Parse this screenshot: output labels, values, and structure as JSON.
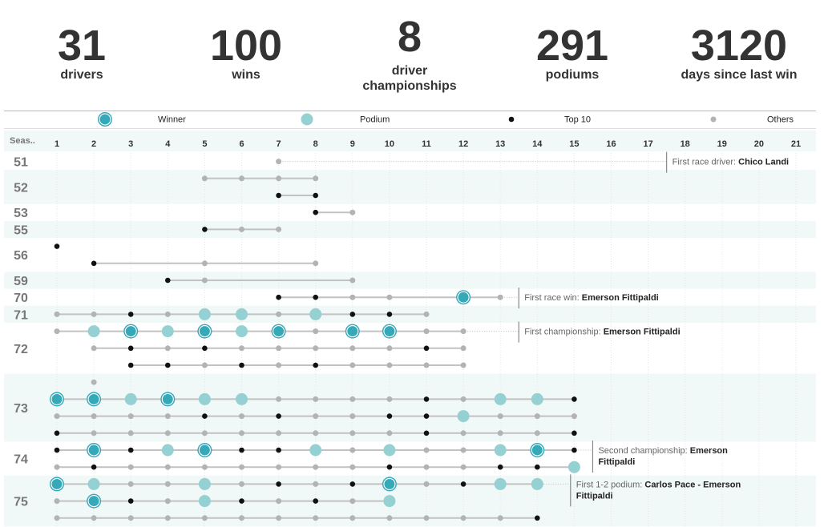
{
  "stats": [
    {
      "value": "31",
      "label": "drivers"
    },
    {
      "value": "100",
      "label": "wins"
    },
    {
      "value": "8",
      "label": "driver championships"
    },
    {
      "value": "291",
      "label": "podiums"
    },
    {
      "value": "3120",
      "label": "days since last win"
    }
  ],
  "colors": {
    "winner": "#36a9b9",
    "podium": "#95d0d3",
    "top10": "#111111",
    "others": "#b3b3b3",
    "band": "#f1f8f8",
    "line": "#c2c2c2"
  },
  "chart_data": {
    "type": "scatter",
    "legend": [
      "Winner",
      "Podium",
      "Top 10",
      "Others"
    ],
    "header_label": "Seas..",
    "x": [
      1,
      2,
      3,
      4,
      5,
      6,
      7,
      8,
      9,
      10,
      11,
      12,
      13,
      14,
      15,
      16,
      17,
      18,
      19,
      20,
      21
    ],
    "seasons": [
      {
        "label": "51",
        "rows": [
          [
            [
              7,
              "o"
            ]
          ]
        ]
      },
      {
        "label": "52",
        "rows": [
          [
            [
              5,
              "o"
            ],
            [
              6,
              "o"
            ],
            [
              7,
              "o"
            ],
            [
              8,
              "o"
            ]
          ],
          [
            [
              7,
              "t"
            ],
            [
              8,
              "t"
            ]
          ]
        ]
      },
      {
        "label": "53",
        "rows": [
          [
            [
              8,
              "t"
            ],
            [
              9,
              "o"
            ]
          ]
        ]
      },
      {
        "label": "55",
        "rows": [
          [
            [
              5,
              "t"
            ],
            [
              6,
              "o"
            ],
            [
              7,
              "o"
            ]
          ]
        ]
      },
      {
        "label": "56",
        "rows": [
          [
            [
              1,
              "t"
            ]
          ],
          [
            [
              2,
              "t"
            ],
            [
              5,
              "o"
            ],
            [
              8,
              "o"
            ]
          ]
        ]
      },
      {
        "label": "59",
        "rows": [
          [
            [
              4,
              "t"
            ],
            [
              5,
              "o"
            ],
            [
              9,
              "o"
            ]
          ]
        ]
      },
      {
        "label": "70",
        "rows": [
          [
            [
              7,
              "t"
            ],
            [
              8,
              "t"
            ],
            [
              9,
              "o"
            ],
            [
              10,
              "o"
            ],
            [
              12,
              "w"
            ],
            [
              13,
              "o"
            ]
          ]
        ]
      },
      {
        "label": "71",
        "rows": [
          [
            [
              1,
              "o"
            ],
            [
              2,
              "o"
            ],
            [
              3,
              "t"
            ],
            [
              4,
              "o"
            ],
            [
              5,
              "p"
            ],
            [
              6,
              "p"
            ],
            [
              7,
              "o"
            ],
            [
              8,
              "p"
            ],
            [
              9,
              "t"
            ],
            [
              10,
              "t"
            ],
            [
              11,
              "o"
            ]
          ]
        ]
      },
      {
        "label": "72",
        "rows": [
          [
            [
              1,
              "o"
            ],
            [
              2,
              "p"
            ],
            [
              3,
              "w"
            ],
            [
              4,
              "p"
            ],
            [
              5,
              "w"
            ],
            [
              6,
              "p"
            ],
            [
              7,
              "w"
            ],
            [
              8,
              "o"
            ],
            [
              9,
              "w"
            ],
            [
              10,
              "w"
            ],
            [
              11,
              "o"
            ],
            [
              12,
              "o"
            ]
          ],
          [
            [
              2,
              "o"
            ],
            [
              3,
              "t"
            ],
            [
              4,
              "o"
            ],
            [
              5,
              "t"
            ],
            [
              6,
              "o"
            ],
            [
              7,
              "o"
            ],
            [
              8,
              "o"
            ],
            [
              9,
              "o"
            ],
            [
              10,
              "o"
            ],
            [
              11,
              "t"
            ],
            [
              12,
              "o"
            ]
          ],
          [
            [
              3,
              "t"
            ],
            [
              4,
              "t"
            ],
            [
              5,
              "o"
            ],
            [
              6,
              "t"
            ],
            [
              7,
              "o"
            ],
            [
              8,
              "t"
            ],
            [
              9,
              "o"
            ],
            [
              10,
              "o"
            ],
            [
              11,
              "o"
            ],
            [
              12,
              "o"
            ]
          ]
        ]
      },
      {
        "label": "73",
        "rows": [
          [
            [
              2,
              "o"
            ]
          ],
          [
            [
              1,
              "w"
            ],
            [
              2,
              "w"
            ],
            [
              3,
              "p"
            ],
            [
              4,
              "w"
            ],
            [
              5,
              "p"
            ],
            [
              6,
              "p"
            ],
            [
              7,
              "o"
            ],
            [
              8,
              "o"
            ],
            [
              9,
              "o"
            ],
            [
              10,
              "o"
            ],
            [
              11,
              "t"
            ],
            [
              12,
              "o"
            ],
            [
              13,
              "p"
            ],
            [
              14,
              "p"
            ],
            [
              15,
              "t"
            ]
          ],
          [
            [
              1,
              "o"
            ],
            [
              2,
              "o"
            ],
            [
              3,
              "o"
            ],
            [
              4,
              "o"
            ],
            [
              5,
              "t"
            ],
            [
              6,
              "o"
            ],
            [
              7,
              "t"
            ],
            [
              8,
              "o"
            ],
            [
              9,
              "o"
            ],
            [
              10,
              "t"
            ],
            [
              11,
              "t"
            ],
            [
              12,
              "p"
            ],
            [
              13,
              "o"
            ],
            [
              14,
              "o"
            ],
            [
              15,
              "o"
            ]
          ],
          [
            [
              1,
              "t"
            ],
            [
              2,
              "o"
            ],
            [
              3,
              "o"
            ],
            [
              4,
              "o"
            ],
            [
              5,
              "o"
            ],
            [
              6,
              "o"
            ],
            [
              7,
              "o"
            ],
            [
              8,
              "o"
            ],
            [
              9,
              "o"
            ],
            [
              10,
              "o"
            ],
            [
              11,
              "t"
            ],
            [
              12,
              "o"
            ],
            [
              13,
              "o"
            ],
            [
              14,
              "o"
            ],
            [
              15,
              "t"
            ]
          ]
        ]
      },
      {
        "label": "74",
        "rows": [
          [
            [
              1,
              "t"
            ],
            [
              2,
              "w"
            ],
            [
              3,
              "t"
            ],
            [
              4,
              "p"
            ],
            [
              5,
              "w"
            ],
            [
              6,
              "t"
            ],
            [
              7,
              "t"
            ],
            [
              8,
              "p"
            ],
            [
              9,
              "o"
            ],
            [
              10,
              "p"
            ],
            [
              11,
              "o"
            ],
            [
              12,
              "o"
            ],
            [
              13,
              "p"
            ],
            [
              14,
              "w"
            ],
            [
              15,
              "t"
            ]
          ],
          [
            [
              1,
              "o"
            ],
            [
              2,
              "t"
            ],
            [
              3,
              "o"
            ],
            [
              4,
              "o"
            ],
            [
              5,
              "o"
            ],
            [
              6,
              "o"
            ],
            [
              7,
              "o"
            ],
            [
              8,
              "o"
            ],
            [
              9,
              "o"
            ],
            [
              10,
              "t"
            ],
            [
              11,
              "o"
            ],
            [
              12,
              "o"
            ],
            [
              13,
              "t"
            ],
            [
              14,
              "t"
            ],
            [
              15,
              "p"
            ]
          ]
        ]
      },
      {
        "label": "75",
        "rows": [
          [
            [
              1,
              "w"
            ],
            [
              2,
              "p"
            ],
            [
              3,
              "o"
            ],
            [
              4,
              "o"
            ],
            [
              5,
              "p"
            ],
            [
              6,
              "o"
            ],
            [
              7,
              "t"
            ],
            [
              8,
              "o"
            ],
            [
              9,
              "t"
            ],
            [
              10,
              "w"
            ],
            [
              11,
              "o"
            ],
            [
              12,
              "t"
            ],
            [
              13,
              "p"
            ],
            [
              14,
              "p"
            ]
          ],
          [
            [
              1,
              "o"
            ],
            [
              2,
              "w"
            ],
            [
              3,
              "t"
            ],
            [
              4,
              "o"
            ],
            [
              5,
              "p"
            ],
            [
              6,
              "t"
            ],
            [
              7,
              "o"
            ],
            [
              8,
              "t"
            ],
            [
              9,
              "o"
            ],
            [
              10,
              "p"
            ]
          ],
          [
            [
              1,
              "o"
            ],
            [
              2,
              "o"
            ],
            [
              3,
              "o"
            ],
            [
              4,
              "o"
            ],
            [
              5,
              "o"
            ],
            [
              6,
              "o"
            ],
            [
              7,
              "o"
            ],
            [
              8,
              "o"
            ],
            [
              9,
              "o"
            ],
            [
              10,
              "o"
            ],
            [
              11,
              "o"
            ],
            [
              12,
              "o"
            ],
            [
              13,
              "o"
            ],
            [
              14,
              "t"
            ]
          ]
        ]
      }
    ],
    "annotations": [
      {
        "season": "51",
        "x": 17.5,
        "lines": [
          [
            {
              "t": "First race driver: "
            },
            {
              "t": "Chico Landi",
              "b": true
            }
          ]
        ]
      },
      {
        "season": "70",
        "x": 13.5,
        "lines": [
          [
            {
              "t": "First race win: "
            },
            {
              "t": "Emerson Fittipaldi",
              "b": true
            }
          ]
        ]
      },
      {
        "season": "72",
        "x": 13.5,
        "lines": [
          [
            {
              "t": "First championship: "
            },
            {
              "t": "Emerson Fittipaldi",
              "b": true
            }
          ]
        ]
      },
      {
        "season": "74",
        "x": 15.5,
        "lines": [
          [
            {
              "t": "Second championship: "
            },
            {
              "t": "Emerson",
              "b": true
            }
          ],
          [
            {
              "t": "Fittipaldi",
              "b": true
            }
          ]
        ]
      },
      {
        "season": "75",
        "x": 14.9,
        "lines": [
          [
            {
              "t": "First 1-2 podium: "
            },
            {
              "t": "Carlos Pace - Emerson",
              "b": true
            }
          ],
          [
            {
              "t": "Fittipaldi",
              "b": true
            }
          ]
        ]
      }
    ]
  }
}
